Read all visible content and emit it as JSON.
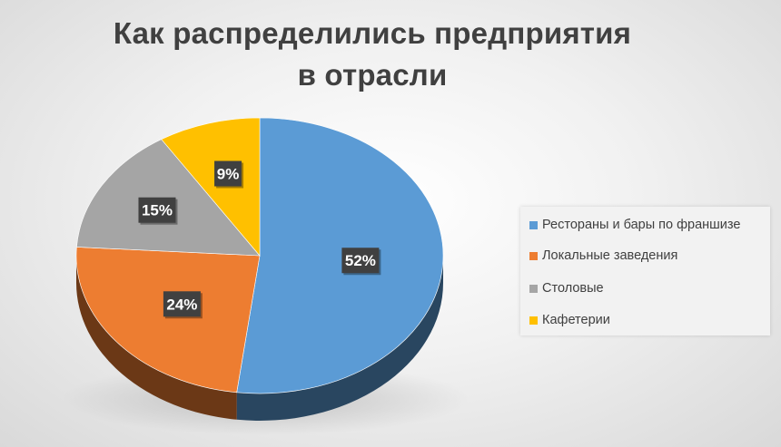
{
  "chart_data": {
    "type": "pie",
    "title": "Как распределились предприятия в отрасли",
    "labels": [
      "Рестораны и бары по франшизе",
      "Локальные заведения",
      "Столовые",
      "Кафетерии"
    ],
    "values": [
      52,
      24,
      15,
      9
    ],
    "data_labels": [
      "52%",
      "24%",
      "15%",
      "9%"
    ],
    "colors": [
      "#5b9bd5",
      "#ed7d31",
      "#a5a5a5",
      "#ffc000"
    ],
    "style": "3d",
    "legend": "right"
  }
}
